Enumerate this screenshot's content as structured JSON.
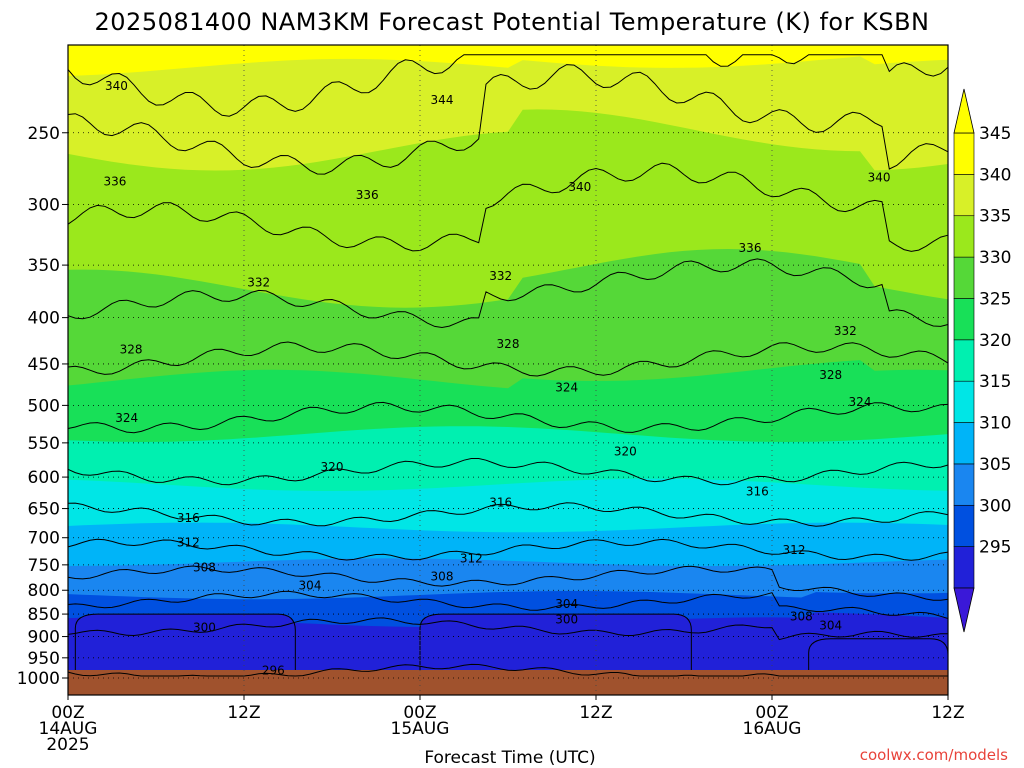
{
  "title": "2025081400 NAM3KM Forecast Potential Temperature (K) for KSBN",
  "xlabel": "Forecast Time (UTC)",
  "credit": "coolwx.com/models",
  "colors": {
    "ground": "#a0522d",
    "background": "#ffffff"
  },
  "chart_data": {
    "type": "heatmap",
    "title": "2025081400 NAM3KM Forecast Potential Temperature (K) for KSBN",
    "xlabel": "Forecast Time (UTC)",
    "ylabel": "",
    "x_ticks": [
      {
        "hour": 0,
        "lines": [
          "00Z",
          "14AUG",
          "2025"
        ]
      },
      {
        "hour": 12,
        "lines": [
          "12Z"
        ]
      },
      {
        "hour": 24,
        "lines": [
          "00Z",
          "15AUG"
        ]
      },
      {
        "hour": 36,
        "lines": [
          "12Z"
        ]
      },
      {
        "hour": 48,
        "lines": [
          "00Z",
          "16AUG"
        ]
      },
      {
        "hour": 60,
        "lines": [
          "12Z"
        ]
      }
    ],
    "xlim": [
      0,
      60
    ],
    "y_ticks": [
      250,
      300,
      350,
      400,
      450,
      500,
      550,
      600,
      650,
      700,
      750,
      800,
      850,
      900,
      950,
      1000
    ],
    "ylim_hPa": [
      200,
      1000
    ],
    "y_scale": "log-pressure (inverted)",
    "grid": "dotted",
    "colorbar": {
      "levels": [
        295,
        300,
        305,
        310,
        315,
        320,
        325,
        330,
        335,
        340,
        345
      ],
      "colors": [
        "#2121d8",
        "#0050e0",
        "#1a86f0",
        "#00b4f8",
        "#00e6e6",
        "#00f0b0",
        "#18e058",
        "#55d838",
        "#9be81c",
        "#d8f028",
        "#ffff00"
      ],
      "extend": "both"
    },
    "contour_interval": 4,
    "contour_labels": [
      {
        "value": "340",
        "hour": 3.3,
        "p": 222
      },
      {
        "value": "344",
        "hour": 25.5,
        "p": 230
      },
      {
        "value": "336",
        "hour": 3.2,
        "p": 283
      },
      {
        "value": "336",
        "hour": 20.4,
        "p": 293
      },
      {
        "value": "340",
        "hour": 34.9,
        "p": 287
      },
      {
        "value": "340",
        "hour": 55.3,
        "p": 280
      },
      {
        "value": "336",
        "hour": 46.5,
        "p": 335
      },
      {
        "value": "332",
        "hour": 13.0,
        "p": 366
      },
      {
        "value": "332",
        "hour": 29.5,
        "p": 360
      },
      {
        "value": "332",
        "hour": 53.0,
        "p": 414
      },
      {
        "value": "328",
        "hour": 4.3,
        "p": 434
      },
      {
        "value": "328",
        "hour": 30.0,
        "p": 428
      },
      {
        "value": "328",
        "hour": 52.0,
        "p": 463
      },
      {
        "value": "324",
        "hour": 34.0,
        "p": 478
      },
      {
        "value": "324",
        "hour": 4.0,
        "p": 516
      },
      {
        "value": "324",
        "hour": 54.0,
        "p": 496
      },
      {
        "value": "320",
        "hour": 18.0,
        "p": 585
      },
      {
        "value": "320",
        "hour": 38.0,
        "p": 562
      },
      {
        "value": "316",
        "hour": 8.2,
        "p": 666
      },
      {
        "value": "316",
        "hour": 29.5,
        "p": 640
      },
      {
        "value": "316",
        "hour": 47.0,
        "p": 622
      },
      {
        "value": "312",
        "hour": 8.2,
        "p": 709
      },
      {
        "value": "312",
        "hour": 27.5,
        "p": 738
      },
      {
        "value": "312",
        "hour": 49.5,
        "p": 722
      },
      {
        "value": "308",
        "hour": 9.3,
        "p": 755
      },
      {
        "value": "308",
        "hour": 25.5,
        "p": 773
      },
      {
        "value": "308",
        "hour": 50.0,
        "p": 855
      },
      {
        "value": "304",
        "hour": 16.5,
        "p": 790
      },
      {
        "value": "304",
        "hour": 34.0,
        "p": 828
      },
      {
        "value": "304",
        "hour": 52.0,
        "p": 875
      },
      {
        "value": "300",
        "hour": 9.3,
        "p": 880
      },
      {
        "value": "300",
        "hour": 34.0,
        "p": 862
      },
      {
        "value": "296",
        "hour": 14.0,
        "p": 981
      }
    ]
  }
}
